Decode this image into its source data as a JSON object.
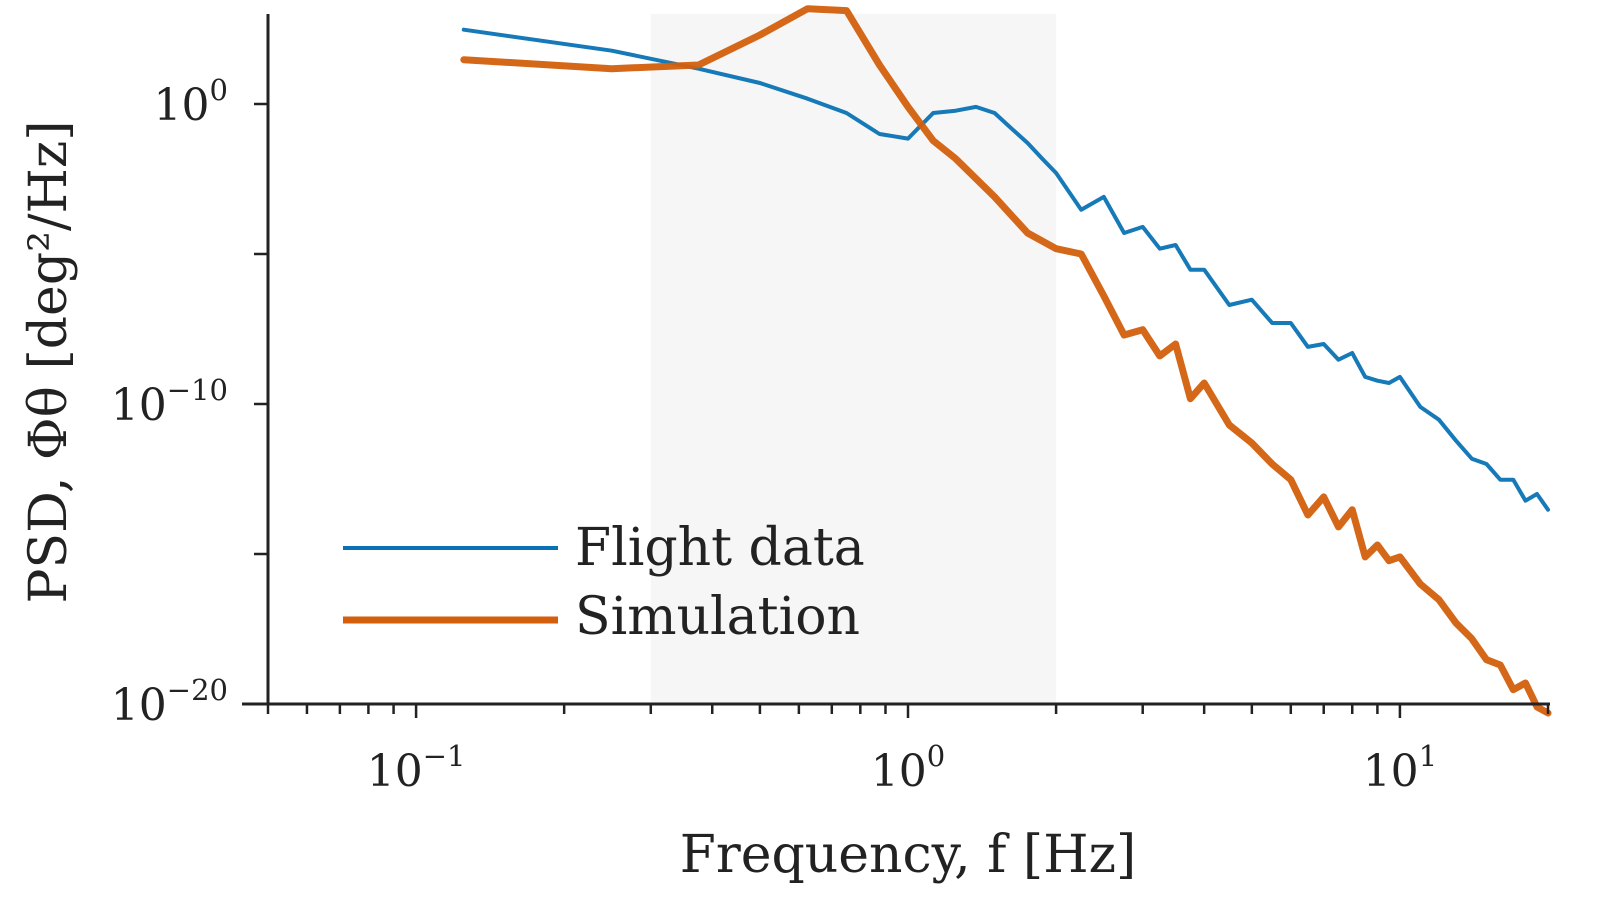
{
  "chart_data": {
    "type": "line",
    "title": "",
    "xlabel": "Frequency, f [Hz]",
    "ylabel": "PSD, Φθ [deg²/Hz]",
    "x_scale": "log",
    "y_scale": "log",
    "xlim": [
      0.05,
      20
    ],
    "ylim": [
      1e-20,
      1000.0
    ],
    "grid": false,
    "legend_position": "lower-left",
    "shaded_band": {
      "x_from": 0.3,
      "x_to": 2.0,
      "color": "#f6f6f6"
    },
    "x_ticks": [
      {
        "value": 0.1,
        "base": "10",
        "exp": "−1"
      },
      {
        "value": 1,
        "base": "10",
        "exp": "0"
      },
      {
        "value": 10,
        "base": "10",
        "exp": "1"
      }
    ],
    "y_ticks": [
      {
        "value": 1,
        "base": "10",
        "exp": "0"
      },
      {
        "value": 1e-10,
        "base": "10",
        "exp": "−10"
      },
      {
        "value": 1e-20,
        "base": "10",
        "exp": "−20"
      }
    ],
    "series": [
      {
        "name": "Flight data",
        "color": "#0a72b4",
        "x": [
          0.125,
          0.25,
          0.375,
          0.5,
          0.625,
          0.75,
          0.875,
          1.0,
          1.125,
          1.25,
          1.375,
          1.5,
          1.625,
          1.75,
          1.875,
          2.0,
          2.25,
          2.5,
          2.75,
          3.0,
          3.25,
          3.5,
          3.75,
          4.0,
          4.5,
          5.0,
          5.5,
          6.0,
          6.5,
          7.0,
          7.5,
          8.0,
          8.5,
          9.0,
          9.5,
          10.0,
          11.0,
          12.0,
          13.0,
          14.0,
          15.0,
          16.0,
          17.0,
          18.0,
          19.0,
          20.0
        ],
        "y": [
          300.0,
          60.0,
          15.0,
          5,
          1.5,
          0.5,
          0.1,
          0.07,
          0.5,
          0.6,
          0.8,
          0.5,
          0.15,
          0.05,
          0.015,
          0.005,
          0.0003,
          0.0008,
          5e-05,
          8e-05,
          1.5e-05,
          2e-05,
          3e-06,
          3e-06,
          2e-07,
          3e-07,
          5e-08,
          5e-08,
          8e-09,
          1e-08,
          3e-09,
          5e-09,
          8e-10,
          6e-10,
          5e-10,
          8e-10,
          8e-11,
          3e-11,
          6e-12,
          1.5e-12,
          1e-12,
          3e-13,
          3e-13,
          6e-14,
          1e-13,
          3e-14
        ]
      },
      {
        "name": "Simulation",
        "color": "#d35f0d",
        "x": [
          0.125,
          0.25,
          0.375,
          0.5,
          0.625,
          0.75,
          0.875,
          1.0,
          1.125,
          1.25,
          1.5,
          1.75,
          2.0,
          2.25,
          2.5,
          2.75,
          3.0,
          3.25,
          3.5,
          3.75,
          4.0,
          4.5,
          5.0,
          5.5,
          6.0,
          6.5,
          7.0,
          7.5,
          8.0,
          8.5,
          9.0,
          9.5,
          10.0,
          11.0,
          12.0,
          13.0,
          14.0,
          15.0,
          16.0,
          17.0,
          18.0,
          19.0,
          20.0
        ],
        "y": [
          30.0,
          15.0,
          20.0,
          200.0,
          1500.0,
          1300.0,
          20.0,
          0.8,
          0.06,
          0.015,
          0.0008,
          5e-05,
          1.5e-05,
          1e-05,
          4e-07,
          2e-08,
          3e-08,
          4e-09,
          1e-08,
          1.5e-10,
          5e-10,
          2e-11,
          5e-12,
          1e-12,
          3e-13,
          2e-14,
          8e-14,
          8e-15,
          3e-14,
          8e-16,
          2e-15,
          6e-16,
          8e-16,
          1e-16,
          3e-17,
          5e-18,
          1.5e-18,
          3e-19,
          2e-19,
          3e-20,
          5e-20,
          8e-21,
          5e-21
        ]
      }
    ]
  }
}
